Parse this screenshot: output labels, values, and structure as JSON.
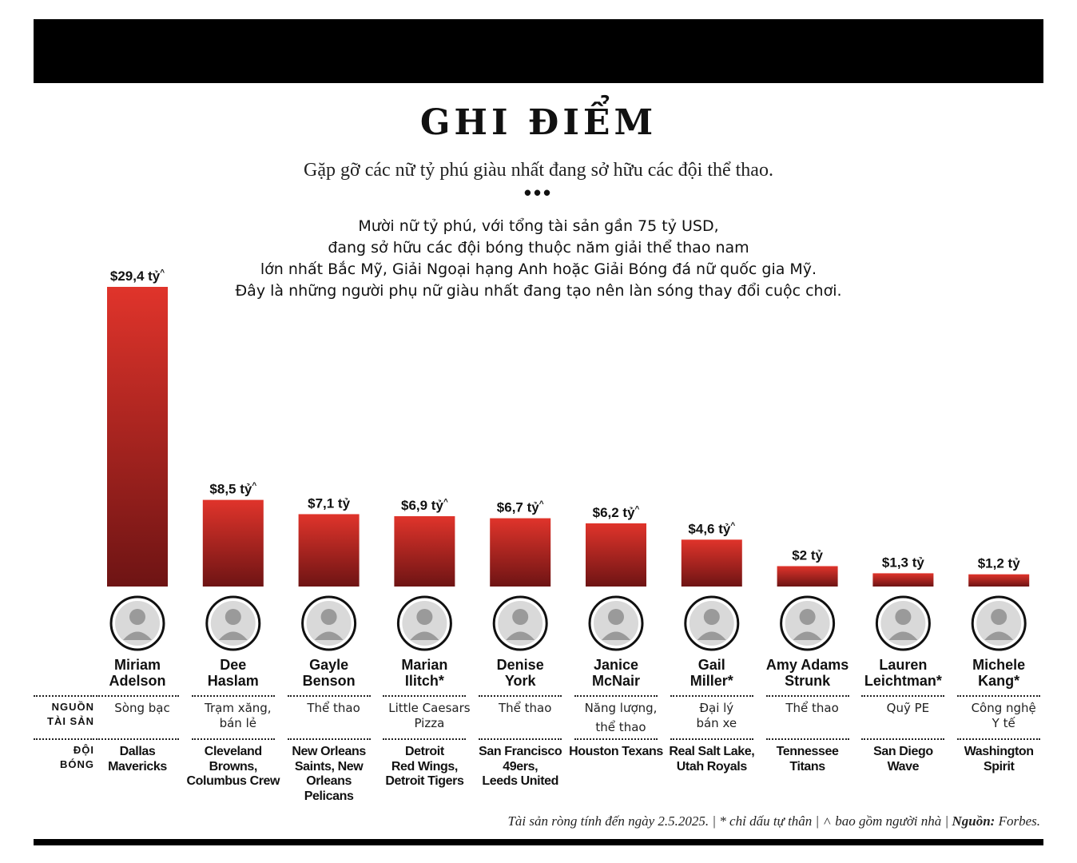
{
  "header": {
    "title": "GHI ĐIỂM",
    "subtitle": "Gặp gỡ các nữ tỷ phú giàu nhất đang sở hữu các đội thể thao.",
    "separator": "•••",
    "intro_lines": [
      "Mười nữ tỷ phú, với tổng tài sản gần 75 tỷ USD,",
      "đang sở hữu các đội bóng thuộc năm giải thể thao nam",
      "lớn nhất Bắc Mỹ, Giải Ngoại hạng Anh hoặc Giải Bóng đá nữ quốc gia Mỹ.",
      "Đây là những người phụ nữ giàu nhất đang tạo nên làn sóng thay đổi cuộc chơi."
    ]
  },
  "row_labels": {
    "source_line1": "NGUỒN",
    "source_line2": "TÀI SẢN",
    "team_line1": "ĐỘI",
    "team_line2": "BÓNG"
  },
  "colors": {
    "bar_top": "#e0342b",
    "bar_bottom": "#6e1414",
    "text": "#111111"
  },
  "chart_data": {
    "type": "bar",
    "unit": "tỷ USD",
    "categories": [
      "Miriam Adelson",
      "Dee Haslam",
      "Gayle Benson",
      "Marian Ilitch*",
      "Denise York",
      "Janice McNair",
      "Gail Miller*",
      "Amy Adams Strunk",
      "Lauren Leichtman*",
      "Michele Kang*"
    ],
    "values": [
      29.4,
      8.5,
      7.1,
      6.9,
      6.7,
      6.2,
      4.6,
      2.0,
      1.3,
      1.2
    ],
    "value_labels": [
      "$29,4 tỷ",
      "$8,5 tỷ",
      "$7,1 tỷ",
      "$6,9 tỷ",
      "$6,7 tỷ",
      "$6,2 tỷ",
      "$4,6 tỷ",
      "$2 tỷ",
      "$1,3 tỷ",
      "$1,2 tỷ"
    ],
    "includes_family": [
      true,
      true,
      false,
      true,
      true,
      true,
      true,
      false,
      false,
      false
    ],
    "family_marker": "^",
    "ylim": [
      0,
      29.4
    ]
  },
  "owners": [
    {
      "name_lines": [
        "Miriam",
        "Adelson"
      ],
      "source_lines": [
        "Sòng bạc"
      ],
      "team_lines": [
        "Dallas",
        "Mavericks"
      ]
    },
    {
      "name_lines": [
        "Dee",
        "Haslam"
      ],
      "source_lines": [
        "Trạm xăng,",
        "bán lẻ"
      ],
      "team_lines": [
        "Cleveland",
        "Browns,",
        "Columbus Crew"
      ]
    },
    {
      "name_lines": [
        "Gayle",
        "Benson"
      ],
      "source_lines": [
        "Thể thao"
      ],
      "team_lines": [
        "New Orleans",
        "Saints, New",
        "Orleans",
        "Pelicans"
      ]
    },
    {
      "name_lines": [
        "Marian",
        "Ilitch*"
      ],
      "source_lines": [
        "Little Caesars",
        "Pizza"
      ],
      "team_lines": [
        "Detroit",
        "Red Wings,",
        "Detroit Tigers"
      ]
    },
    {
      "name_lines": [
        "Denise",
        "York"
      ],
      "source_lines": [
        "Thể thao"
      ],
      "team_lines": [
        "San Francisco",
        "49ers,",
        "Leeds United"
      ]
    },
    {
      "name_lines": [
        "Janice",
        "McNair"
      ],
      "source_lines": [
        "Năng lượng,",
        "thể thao"
      ],
      "team_lines": [
        "Houston Texans"
      ]
    },
    {
      "name_lines": [
        "Gail",
        "Miller*"
      ],
      "source_lines": [
        "Đại lý",
        "bán xe"
      ],
      "team_lines": [
        "Real Salt Lake,",
        "Utah Royals"
      ]
    },
    {
      "name_lines": [
        "Amy Adams",
        "Strunk"
      ],
      "source_lines": [
        "Thể thao"
      ],
      "team_lines": [
        "Tennessee",
        "Titans"
      ]
    },
    {
      "name_lines": [
        "Lauren",
        "Leichtman*"
      ],
      "source_lines": [
        "Quỹ PE"
      ],
      "team_lines": [
        "San Diego",
        "Wave"
      ]
    },
    {
      "name_lines": [
        "Michele",
        "Kang*"
      ],
      "source_lines": [
        "Công nghệ",
        "Y tế"
      ],
      "team_lines": [
        "Washington",
        "Spirit"
      ]
    }
  ],
  "footnote": {
    "text": "Tài sản ròng tính đến ngày 2.5.2025. | * chỉ dấu tự thân | ˄ bao gồm người nhà | ",
    "source_label": "Nguồn:",
    "source_value": " Forbes."
  }
}
